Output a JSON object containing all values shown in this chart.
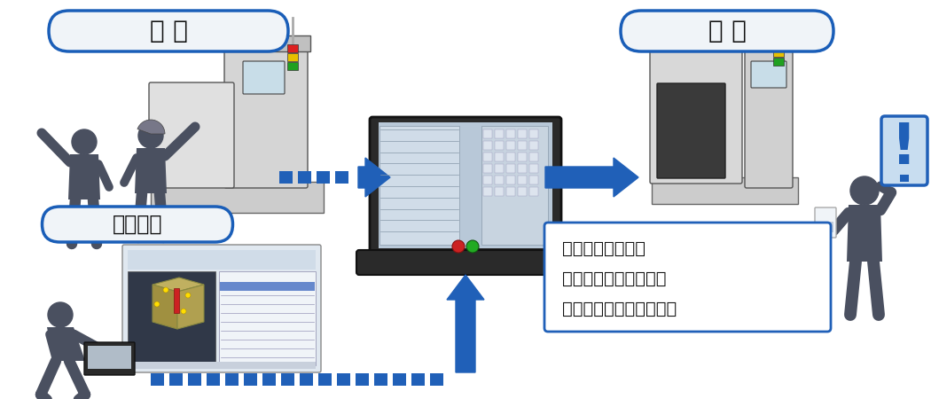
{
  "bg_color": "#ffffff",
  "label_kyouiku": "教 育",
  "label_seika": "成 果",
  "label_dosa": "動作確認",
  "bullet_items": [
    "・習得技術の実現",
    "・円滑な機械立ち上げ",
    "・すばやい段取り・加工"
  ],
  "label_box_fill": "#f0f4f8",
  "label_box_edge": "#1a5eb8",
  "arrow_color": "#2060b8",
  "text_color": "#111111",
  "bullet_box_fill": "#ffffff",
  "bullet_box_edge": "#2060b8",
  "silhouette_color": "#4a5060",
  "signal_red": "#dd2020",
  "signal_yellow": "#e8c000",
  "signal_green": "#20a020",
  "exclaim_color": "#2060b8",
  "exclaim_fill": "#c8ddf0",
  "label_fontsize": 20,
  "bullet_fontsize": 13
}
